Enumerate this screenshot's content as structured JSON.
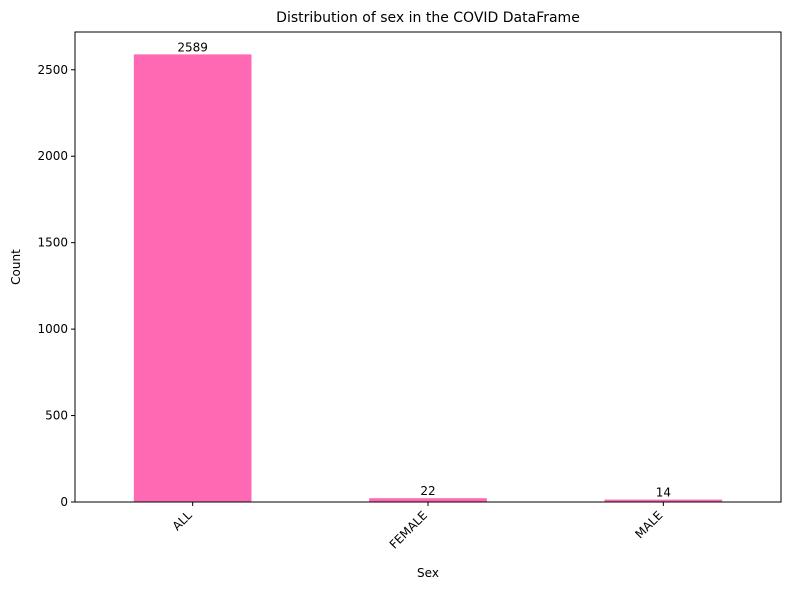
{
  "chart_data": {
    "type": "bar",
    "title": "Distribution of sex in the COVID DataFrame",
    "xlabel": "Sex",
    "ylabel": "Count",
    "categories": [
      "ALL",
      "FEMALE",
      "MALE"
    ],
    "values": [
      2589,
      22,
      14
    ],
    "ylim": [
      0,
      2718.45
    ],
    "yticks": [
      0,
      500,
      1000,
      1500,
      2000,
      2500
    ],
    "bar_color": "#ff69b4",
    "grid": false,
    "legend": "none"
  }
}
